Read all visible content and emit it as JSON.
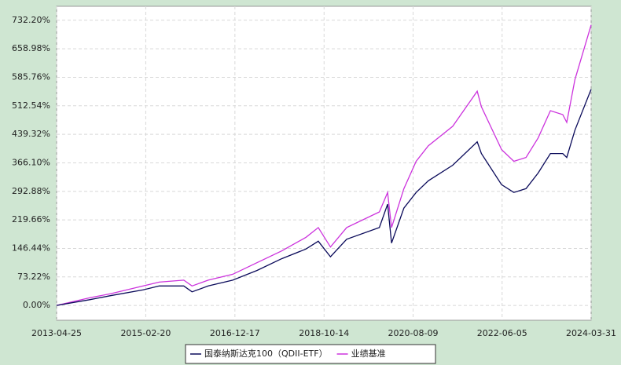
{
  "chart_data": {
    "type": "line",
    "x": [
      "2013-04-25",
      "2014-01-01",
      "2014-06-01",
      "2015-02-01",
      "2015-06-01",
      "2015-12-01",
      "2016-02-01",
      "2016-06-01",
      "2016-12-01",
      "2017-06-01",
      "2017-12-01",
      "2018-06-01",
      "2018-09-01",
      "2018-12-01",
      "2019-04-01",
      "2019-12-01",
      "2020-02-01",
      "2020-03-01",
      "2020-06-01",
      "2020-09-01",
      "2020-12-01",
      "2021-06-01",
      "2021-12-01",
      "2022-01-01",
      "2022-06-01",
      "2022-09-01",
      "2022-12-01",
      "2023-03-01",
      "2023-06-01",
      "2023-09-01",
      "2023-10-01",
      "2023-12-01",
      "2024-03-31"
    ],
    "series": [
      {
        "name": "国泰纳斯达克100（QDII-ETF）",
        "color": "#0a0a5a",
        "values": [
          0,
          15,
          25,
          40,
          50,
          50,
          35,
          50,
          65,
          90,
          120,
          145,
          165,
          125,
          170,
          200,
          260,
          160,
          250,
          290,
          320,
          360,
          420,
          390,
          310,
          290,
          300,
          340,
          390,
          390,
          380,
          450,
          555
        ]
      },
      {
        "name": "业绩基准",
        "color": "#cc33dd",
        "values": [
          0,
          20,
          30,
          50,
          60,
          65,
          50,
          65,
          80,
          110,
          140,
          175,
          200,
          150,
          200,
          240,
          290,
          200,
          300,
          370,
          410,
          460,
          550,
          510,
          400,
          370,
          380,
          430,
          500,
          490,
          470,
          580,
          720
        ]
      }
    ],
    "xlim": [
      "2013-04-25",
      "2024-03-31"
    ],
    "xticks": [
      "2013-04-25",
      "2015-02-20",
      "2016-12-17",
      "2018-10-14",
      "2020-08-09",
      "2022-06-05",
      "2024-03-31"
    ],
    "ylim": [
      -38,
      768
    ],
    "yticks": [
      {
        "value": 0,
        "label": "0.00%"
      },
      {
        "value": 73.22,
        "label": "73.22%"
      },
      {
        "value": 146.44,
        "label": "146.44%"
      },
      {
        "value": 219.66,
        "label": "219.66%"
      },
      {
        "value": 292.88,
        "label": "292.88%"
      },
      {
        "value": 366.1,
        "label": "366.10%"
      },
      {
        "value": 439.32,
        "label": "439.32%"
      },
      {
        "value": 512.54,
        "label": "512.54%"
      },
      {
        "value": 585.76,
        "label": "585.76%"
      },
      {
        "value": 658.98,
        "label": "658.98%"
      },
      {
        "value": 732.2,
        "label": "732.20%"
      }
    ],
    "grid": true
  }
}
